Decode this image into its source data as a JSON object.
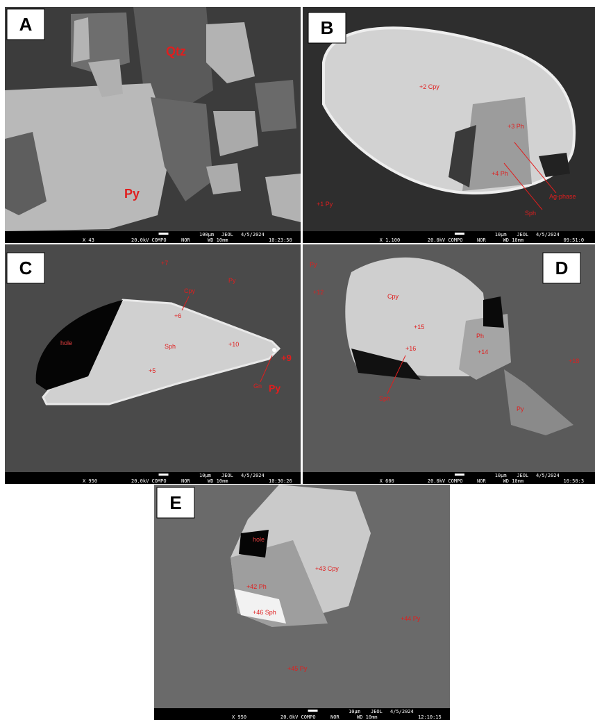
{
  "panels": [
    {
      "label": "A",
      "annotations": [
        "Qtz",
        "Py"
      ],
      "info": {
        "scale": "100μm",
        "maker": "JEOL",
        "date": "4/5/2024",
        "magnification": "X 43",
        "voltage": "20.0kV COMPO",
        "mode": "NOR",
        "wd": "WD 10mm",
        "time": "10:23:50"
      }
    },
    {
      "label": "B",
      "annotations": [
        "+2 Cpy",
        "+3 Ph",
        "+4 Ph",
        "Ag-phase",
        "Sph",
        "+1 Py"
      ],
      "info": {
        "scale": "10μm",
        "maker": "JEOL",
        "date": "4/5/2024",
        "magnification": "X 1,100",
        "voltage": "20.0kV COMPO",
        "mode": "NOR",
        "wd": "WD 10mm",
        "time": "09:51:0"
      }
    },
    {
      "label": "C",
      "annotations": [
        "+7",
        "Py",
        "Cpy",
        "+6",
        "hole",
        "Sph",
        "+10",
        "+9",
        "+5",
        "Gn",
        "Py"
      ],
      "info": {
        "scale": "10μm",
        "maker": "JEOL",
        "date": "4/5/2024",
        "magnification": "X 950",
        "voltage": "20.0kV COMPO",
        "mode": "NOR",
        "wd": "WD 10mm",
        "time": "10:30:26"
      }
    },
    {
      "label": "D",
      "annotations": [
        "Py",
        "+12",
        "Cpy",
        "+15",
        "Ph",
        "+14",
        "+16",
        "Sph",
        "+18",
        "Py"
      ],
      "info": {
        "scale": "10μm",
        "maker": "JEOL",
        "date": "4/5/2024",
        "magnification": "X 600",
        "voltage": "20.0kV COMPO",
        "mode": "NOR",
        "wd": "WD 10mm",
        "time": "10:50:3"
      }
    },
    {
      "label": "E",
      "annotations": [
        "hole",
        "+43 Cpy",
        "+42 Ph",
        "+46 Sph",
        "+44 Py",
        "+45 Py"
      ],
      "info": {
        "scale": "10μm",
        "maker": "JEOL",
        "date": "4/5/2024",
        "magnification": "X 950",
        "voltage": "20.0kV COMPO",
        "mode": "NOR",
        "wd": "WD 10mm",
        "time": "12:10:15"
      }
    }
  ]
}
